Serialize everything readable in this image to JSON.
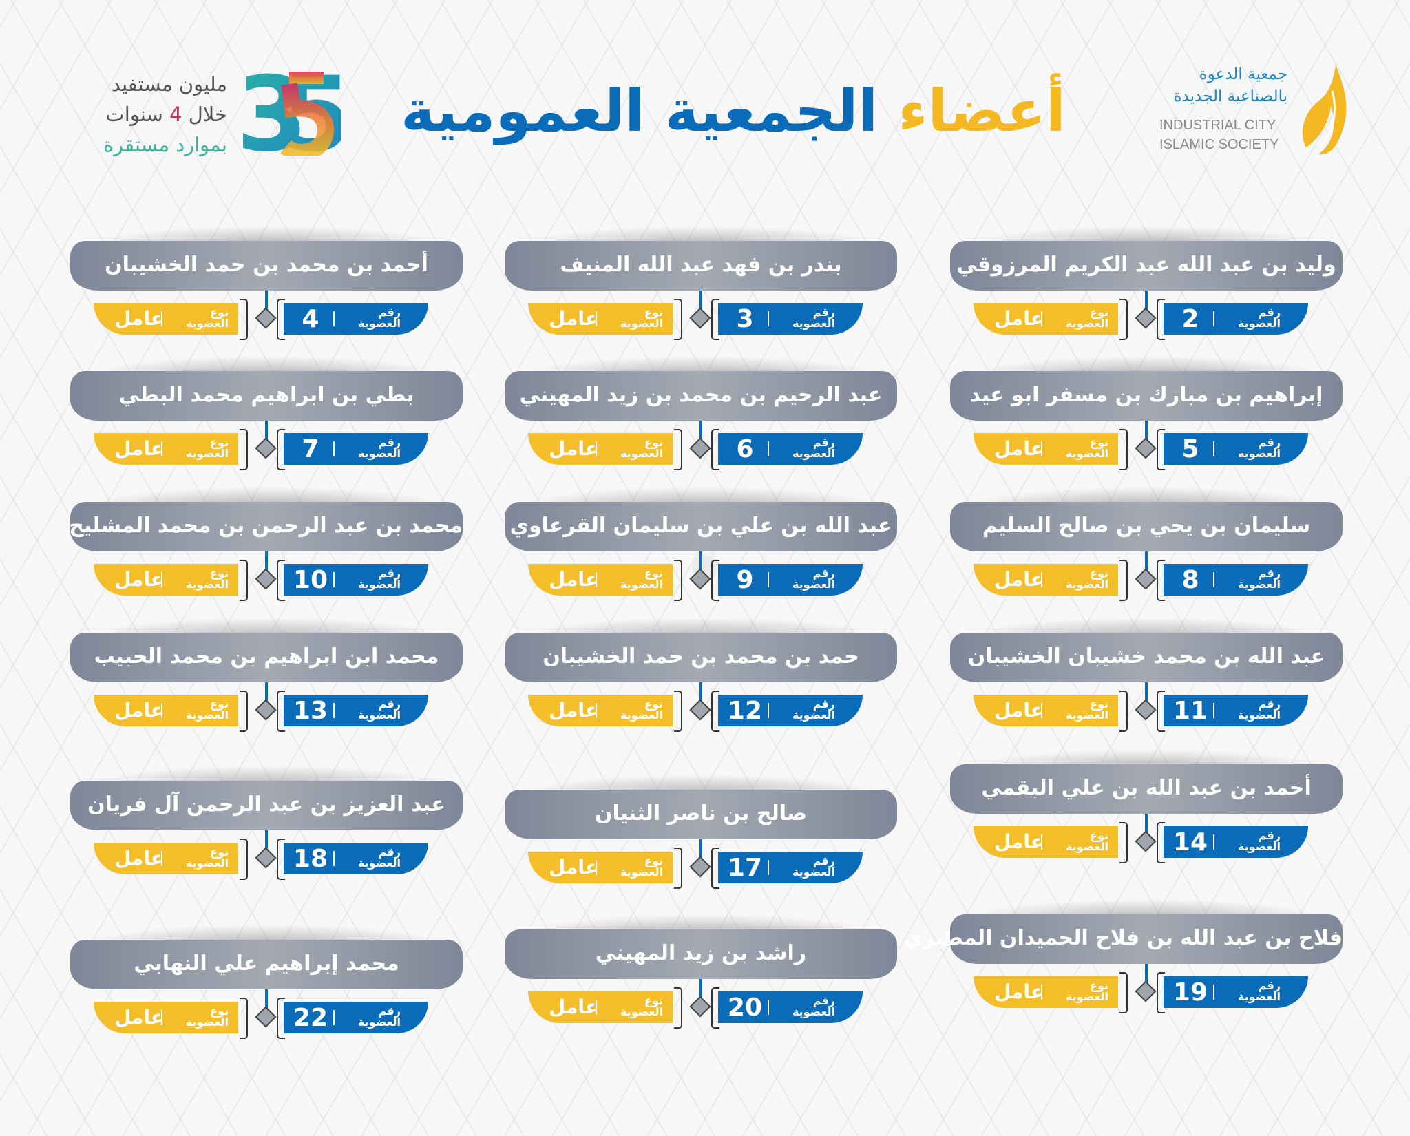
{
  "header": {
    "title_highlight": "أعضاء",
    "title_main": "الجمعية العمومية",
    "org_ar_line1": "جمعية الدعوة",
    "org_ar_line2": "بالصناعية الجديدة",
    "org_en_line1": "INDUSTRIAL CITY",
    "org_en_line2": "ISLAMIC SOCIETY",
    "anniversary_number": "35",
    "slogan_line1": "مليون مستفيد",
    "slogan_line2_a": "خلال",
    "slogan_line2_num": "4",
    "slogan_line2_b": "سنوات",
    "slogan_line3": "بموارد مستقرة"
  },
  "labels": {
    "membership_number_1": "رقم",
    "membership_number_2": "العضوية",
    "membership_type_1": "نوع",
    "membership_type_2": "العضوية"
  },
  "colors": {
    "blue": "#0a6cb8",
    "yellow": "#f4be2a",
    "gray": "#8a909c"
  },
  "members": [
    {
      "number": "2",
      "name": "وليد بن عبد الله عبد الكريم المرزوقي",
      "type": "عامل"
    },
    {
      "number": "3",
      "name": "بندر بن فهد عبد الله المنيف",
      "type": "عامل"
    },
    {
      "number": "4",
      "name": "أحمد بن محمد بن حمد الخشيبان",
      "type": "عامل"
    },
    {
      "number": "5",
      "name": "إبراهيم بن مبارك بن مسفر ابو عيد",
      "type": "عامل"
    },
    {
      "number": "6",
      "name": "عبد الرحيم بن محمد بن زيد المهيني",
      "type": "عامل"
    },
    {
      "number": "7",
      "name": "بطي بن ابراهيم محمد البطي",
      "type": "عامل"
    },
    {
      "number": "8",
      "name": "سليمان بن يحي بن صالح السليم",
      "type": "عامل"
    },
    {
      "number": "9",
      "name": "عبد الله بن علي بن سليمان القرعاوي",
      "type": "عامل"
    },
    {
      "number": "10",
      "name": "محمد بن عبد الرحمن بن محمد المشليح",
      "type": "عامل"
    },
    {
      "number": "11",
      "name": "عبد الله بن محمد خشيبان الخشيبان",
      "type": "عامل"
    },
    {
      "number": "12",
      "name": "حمد بن محمد بن حمد الخشيبان",
      "type": "عامل"
    },
    {
      "number": "13",
      "name": "محمد ابن ابراهيم بن محمد الحبيب",
      "type": "عامل"
    },
    {
      "number": "14",
      "name": "أحمد بن عبد الله بن علي البقمي",
      "type": "عامل"
    },
    {
      "number": "17",
      "name": "صالح بن ناصر الثنيان",
      "type": "عامل"
    },
    {
      "number": "18",
      "name": "عبد العزيز بن عبد الرحمن آل فريان",
      "type": "عامل"
    },
    {
      "number": "19",
      "name": "فلاح بن عبد الله بن فلاح الحميدان المطيري",
      "type": "عامل"
    },
    {
      "number": "20",
      "name": "راشد بن زيد المهيني",
      "type": "عامل"
    },
    {
      "number": "22",
      "name": "محمد إبراهيم علي النهابي",
      "type": "عامل"
    }
  ]
}
